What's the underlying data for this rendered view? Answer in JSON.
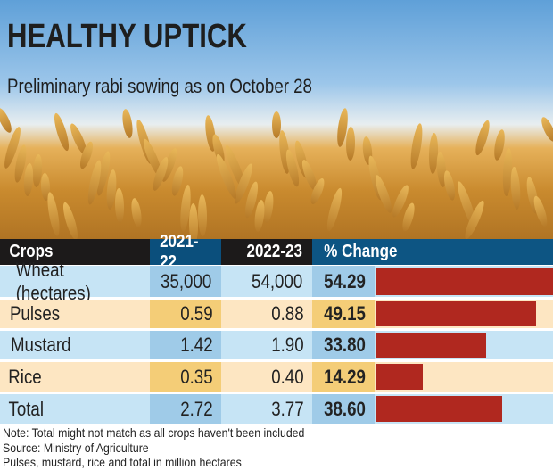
{
  "title": "HEALTHY UPTICK",
  "subtitle": "Preliminary rabi sowing as on October 28",
  "chart_data": {
    "type": "table",
    "columns": [
      "Crops",
      "2021-22",
      "2022-23",
      "% Change"
    ],
    "rows": [
      {
        "crop": "Wheat (hectares)",
        "y2021": "35,000",
        "y2022": "54,000",
        "change": "54.29",
        "value": 54.29
      },
      {
        "crop": "Pulses",
        "y2021": "0.59",
        "y2022": "0.88",
        "change": "49.15",
        "value": 49.15
      },
      {
        "crop": "Mustard",
        "y2021": "1.42",
        "y2022": "1.90",
        "change": "33.80",
        "value": 33.8
      },
      {
        "crop": "Rice",
        "y2021": "0.35",
        "y2022": "0.40",
        "change": "14.29",
        "value": 14.29
      },
      {
        "crop": "Total",
        "y2021": "2.72",
        "y2022": "3.77",
        "change": "38.60",
        "value": 38.6
      }
    ],
    "bar_color": "#b0281f"
  },
  "notes": [
    "Note: Total might not match as all crops haven't been included",
    "Source: Ministry of Agriculture",
    "Pulses, mustard, rice and total in million hectares"
  ]
}
